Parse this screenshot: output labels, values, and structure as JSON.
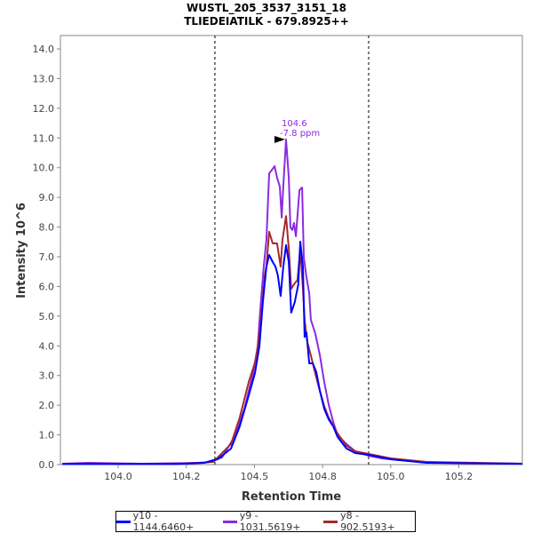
{
  "chart_data": {
    "type": "line",
    "title": "WUSTL_205_3537_3151_18",
    "subtitle": "TLIEDEIATILK - 679.8925++",
    "xlabel": "Retention Time",
    "ylabel": "Intensity 10^6",
    "xlim": [
      103.788,
      105.483
    ],
    "ylim": [
      0,
      14.45
    ],
    "x_ticks": [
      {
        "value": 104.0,
        "label": "104.0"
      },
      {
        "value": 104.25,
        "label": "104.2"
      },
      {
        "value": 104.5,
        "label": "104.5"
      },
      {
        "value": 104.75,
        "label": "104.8"
      },
      {
        "value": 105.0,
        "label": "105.0"
      },
      {
        "value": 105.25,
        "label": "105.2"
      }
    ],
    "y_ticks": [
      "0.0",
      "1.0",
      "2.0",
      "3.0",
      "4.0",
      "5.0",
      "6.0",
      "7.0",
      "8.0",
      "9.0",
      "10.0",
      "11.0",
      "12.0",
      "13.0",
      "14.0"
    ],
    "grid": false,
    "legend_position": "bottom",
    "boundaries": [
      104.355,
      104.919
    ],
    "annotation": {
      "x": 104.616,
      "y": 10.95,
      "line1": "104.6",
      "line2": "-7.8 ppm",
      "color": "#8a2be2"
    },
    "series": [
      {
        "name": "y10 - 1144.6460+",
        "color": "#0000ff",
        "x": [
          103.795,
          104.218,
          104.316,
          104.365,
          104.414,
          104.446,
          104.479,
          104.502,
          104.518,
          104.531,
          104.544,
          104.554,
          104.567,
          104.577,
          104.586,
          104.596,
          104.606,
          104.616,
          104.626,
          104.635,
          104.648,
          104.661,
          104.668,
          104.678,
          104.684,
          104.691,
          104.701,
          104.714,
          104.727,
          104.74,
          104.756,
          104.772,
          104.789,
          104.805,
          104.838,
          104.87,
          104.919,
          105.001,
          105.131,
          105.483
        ],
        "y": [
          0.02,
          0.02,
          0.06,
          0.18,
          0.54,
          1.29,
          2.33,
          3.08,
          3.98,
          5.47,
          6.67,
          7.06,
          6.82,
          6.67,
          6.37,
          5.68,
          6.67,
          7.39,
          6.82,
          5.12,
          5.47,
          6.07,
          7.51,
          6.67,
          4.3,
          4.45,
          3.41,
          3.41,
          3.11,
          2.48,
          1.88,
          1.53,
          1.29,
          0.93,
          0.54,
          0.39,
          0.33,
          0.18,
          0.06,
          0.03
        ]
      },
      {
        "name": "y9 - 1031.5619+",
        "color": "#8a2be2",
        "x": [
          103.795,
          103.892,
          104.088,
          104.316,
          104.381,
          104.43,
          104.463,
          104.495,
          104.512,
          104.521,
          104.534,
          104.544,
          104.554,
          104.567,
          104.574,
          104.583,
          104.593,
          104.6,
          104.606,
          104.616,
          104.626,
          104.632,
          104.639,
          104.645,
          104.652,
          104.665,
          104.675,
          104.681,
          104.691,
          104.701,
          104.707,
          104.723,
          104.74,
          104.756,
          104.772,
          104.789,
          104.805,
          104.838,
          104.87,
          104.919,
          104.968,
          105.066,
          105.196,
          105.483
        ],
        "y": [
          0.03,
          0.06,
          0.03,
          0.06,
          0.24,
          0.99,
          1.88,
          3.08,
          3.98,
          5.18,
          6.67,
          7.57,
          9.81,
          9.96,
          10.05,
          9.66,
          9.36,
          8.32,
          9.36,
          10.95,
          9.66,
          7.99,
          7.9,
          8.14,
          7.69,
          9.24,
          9.33,
          6.97,
          6.31,
          5.77,
          4.88,
          4.43,
          3.68,
          2.78,
          2.03,
          1.44,
          0.99,
          0.69,
          0.45,
          0.3,
          0.21,
          0.12,
          0.06,
          0.03
        ]
      },
      {
        "name": "y8 - 902.5193+",
        "color": "#a52a2a",
        "x": [
          103.795,
          104.218,
          104.349,
          104.414,
          104.446,
          104.479,
          104.505,
          104.521,
          104.538,
          104.544,
          104.554,
          104.567,
          104.583,
          104.596,
          104.603,
          104.616,
          104.626,
          104.635,
          104.645,
          104.658,
          104.668,
          104.678,
          104.684,
          104.694,
          104.707,
          104.723,
          104.74,
          104.756,
          104.772,
          104.805,
          104.838,
          104.87,
          104.919,
          105.001,
          105.131,
          105.483
        ],
        "y": [
          0.03,
          0.02,
          0.09,
          0.69,
          1.59,
          2.78,
          3.53,
          4.58,
          6.37,
          6.67,
          7.84,
          7.45,
          7.45,
          6.67,
          7.57,
          8.37,
          7.27,
          5.92,
          6.07,
          6.22,
          7.27,
          5.92,
          4.88,
          4.13,
          3.68,
          3.08,
          2.48,
          1.97,
          1.59,
          1.05,
          0.63,
          0.45,
          0.36,
          0.21,
          0.09,
          0.03
        ]
      }
    ]
  }
}
